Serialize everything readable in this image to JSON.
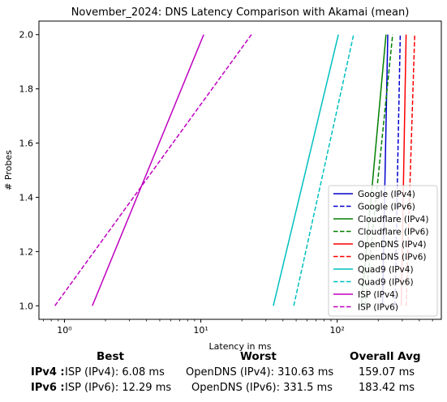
{
  "chart_data": {
    "type": "line",
    "title": "November_2024: DNS Latency Comparison with Akamai (mean)",
    "xlabel": "Latency in ms",
    "ylabel": "# Probes",
    "xscale": "log",
    "xlim": [
      0.65,
      580
    ],
    "ylim": [
      0.95,
      2.05
    ],
    "xticks": [
      1,
      10,
      100
    ],
    "xtick_labels": [
      "10⁰",
      "10¹",
      "10²"
    ],
    "yticks": [
      1.0,
      1.2,
      1.4,
      1.6,
      1.8,
      2.0
    ],
    "ytick_labels": [
      "1.0",
      "1.2",
      "1.4",
      "1.6",
      "1.8",
      "2.0"
    ],
    "legend_position": "lower-right",
    "series": [
      {
        "name": "Google (IPv4)",
        "color": "#0000cc",
        "dash": "solid",
        "x": [
          215,
          235
        ],
        "y": [
          1.0,
          2.0
        ]
      },
      {
        "name": "Google (IPv6)",
        "color": "#0000cc",
        "dash": "dashed",
        "x": [
          265,
          290
        ],
        "y": [
          1.0,
          2.0
        ]
      },
      {
        "name": "Cloudflare (IPv4)",
        "color": "#008000",
        "dash": "solid",
        "x": [
          150,
          228
        ],
        "y": [
          1.0,
          2.0
        ]
      },
      {
        "name": "Cloudflare (IPv6)",
        "color": "#008000",
        "dash": "dashed",
        "x": [
          160,
          255
        ],
        "y": [
          1.0,
          2.0
        ]
      },
      {
        "name": "OpenDNS (IPv4)",
        "color": "#ff0000",
        "dash": "solid",
        "x": [
          295,
          320
        ],
        "y": [
          1.0,
          2.0
        ]
      },
      {
        "name": "OpenDNS (IPv6)",
        "color": "#ff0000",
        "dash": "dashed",
        "x": [
          320,
          370
        ],
        "y": [
          1.0,
          2.0
        ]
      },
      {
        "name": "Quad9 (IPv4)",
        "color": "#00bfbf",
        "dash": "solid",
        "x": [
          34,
          102
        ],
        "y": [
          1.0,
          2.0
        ]
      },
      {
        "name": "Quad9 (IPv6)",
        "color": "#00bfbf",
        "dash": "dashed",
        "x": [
          48,
          132
        ],
        "y": [
          1.0,
          2.0
        ]
      },
      {
        "name": "ISP (IPv4)",
        "color": "#bf00bf",
        "dash": "solid",
        "x": [
          1.6,
          10.5
        ],
        "y": [
          1.0,
          2.0
        ]
      },
      {
        "name": "ISP (IPv6)",
        "color": "#bf00bf",
        "dash": "dashed",
        "x": [
          0.85,
          23.5
        ],
        "y": [
          1.0,
          2.0
        ]
      }
    ]
  },
  "summary": {
    "headers": {
      "best": "Best",
      "worst": "Worst",
      "overall": "Overall Avg"
    },
    "ipv4": {
      "label": "IPv4 :",
      "best": "ISP (IPv4): 6.08 ms",
      "worst": "OpenDNS (IPv4): 310.63 ms",
      "overall": "159.07 ms"
    },
    "ipv6": {
      "label": "IPv6 :",
      "best": "ISP (IPv6): 12.29 ms",
      "worst": "OpenDNS (IPv6): 331.5 ms",
      "overall": "183.42 ms"
    }
  }
}
